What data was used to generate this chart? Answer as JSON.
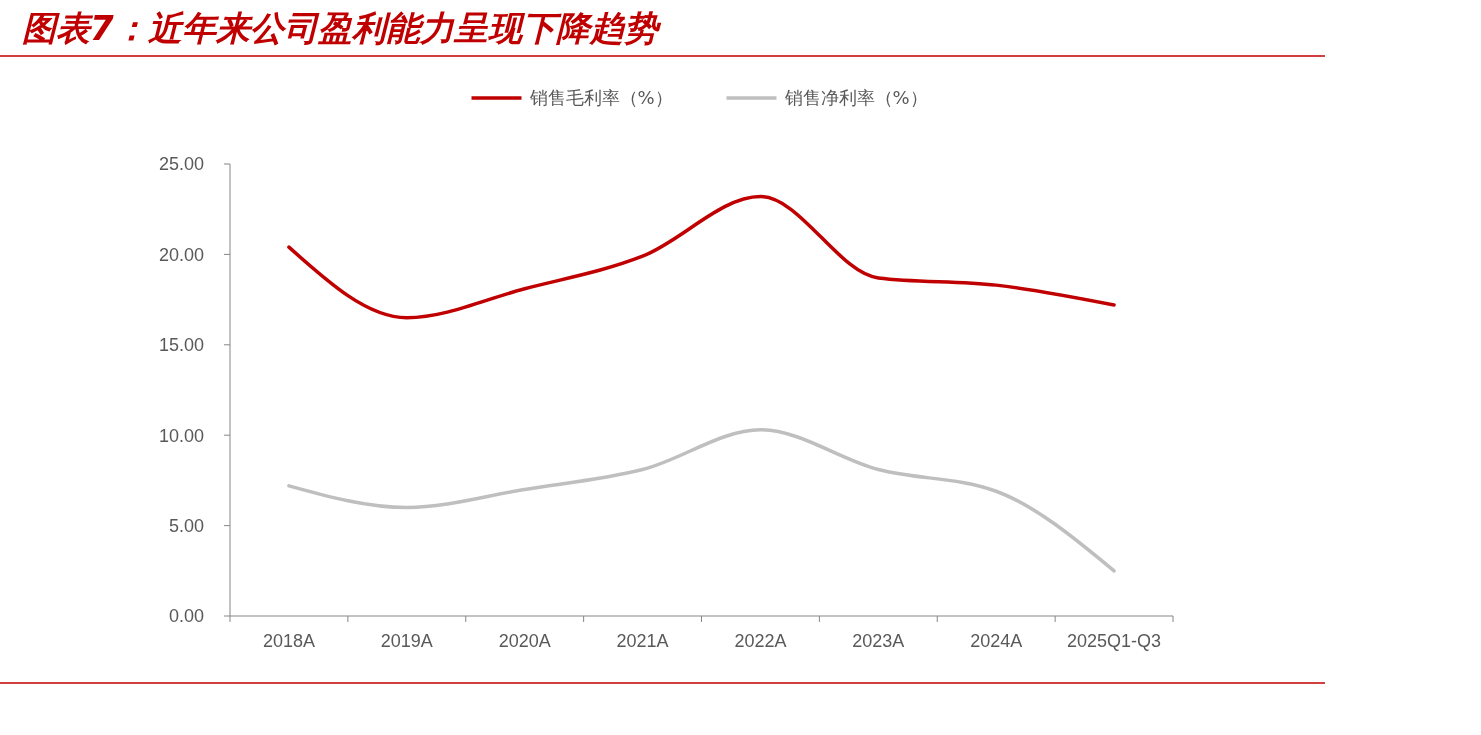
{
  "chart_data": {
    "type": "line",
    "title": "图表7：近年来公司盈利能力呈现下降趋势",
    "categories": [
      "2018A",
      "2019A",
      "2020A",
      "2021A",
      "2022A",
      "2023A",
      "2024A",
      "2025Q1-Q3"
    ],
    "series": [
      {
        "name": "销售毛利率（%）",
        "color": "#c00000",
        "values": [
          20.4,
          16.5,
          18.1,
          19.9,
          23.2,
          18.7,
          18.3,
          17.2
        ]
      },
      {
        "name": "销售净利率（%）",
        "color": "#bfbfbf",
        "values": [
          7.2,
          6.0,
          7.0,
          8.1,
          10.3,
          8.1,
          6.9,
          2.5
        ]
      }
    ],
    "ylim": [
      0,
      25
    ],
    "yticks": [
      {
        "value": 0,
        "label": "0.00"
      },
      {
        "value": 5,
        "label": "5.00"
      },
      {
        "value": 10,
        "label": "10.00"
      },
      {
        "value": 15,
        "label": "15.00"
      },
      {
        "value": 20,
        "label": "20.00"
      },
      {
        "value": 25,
        "label": "25.00"
      }
    ],
    "legend": "top",
    "grid": false,
    "marker": "none",
    "line_style": "solid"
  }
}
